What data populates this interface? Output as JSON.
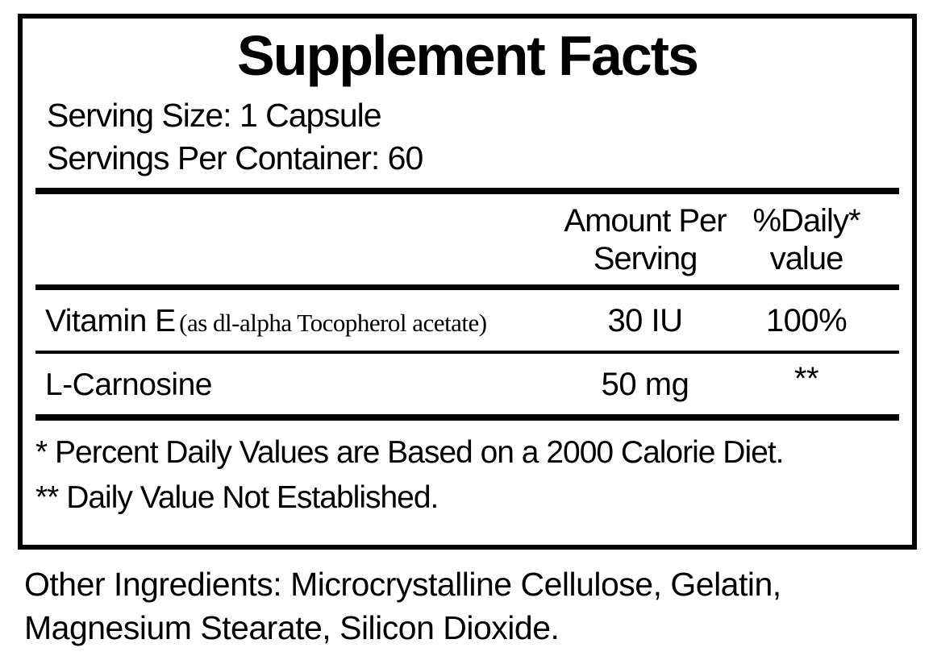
{
  "panel": {
    "title": "Supplement Facts",
    "serving_size": "Serving Size: 1 Capsule",
    "servings_per_container": "Servings Per Container: 60",
    "header": {
      "amount_line1": "Amount Per",
      "amount_line2": "Serving",
      "daily_value_line1": "%Daily*",
      "daily_value_line2": "value"
    },
    "rows": [
      {
        "name": "Vitamin E",
        "detail": "(as dl-alpha Tocopherol acetate)",
        "amount": "30 IU",
        "daily_value": "100%"
      },
      {
        "name": "L-Carnosine",
        "detail": "",
        "amount": "50 mg",
        "daily_value": "**"
      }
    ],
    "footnotes": [
      "* Percent Daily Values are Based on a 2000 Calorie Diet.",
      "** Daily Value Not Established."
    ]
  },
  "other_ingredients": "Other Ingredients: Microcrystalline Cellulose, Gelatin, Magnesium Stearate, Silicon Dioxide.",
  "colors": {
    "text": "#000000",
    "background": "#ffffff",
    "rule": "#000000"
  }
}
